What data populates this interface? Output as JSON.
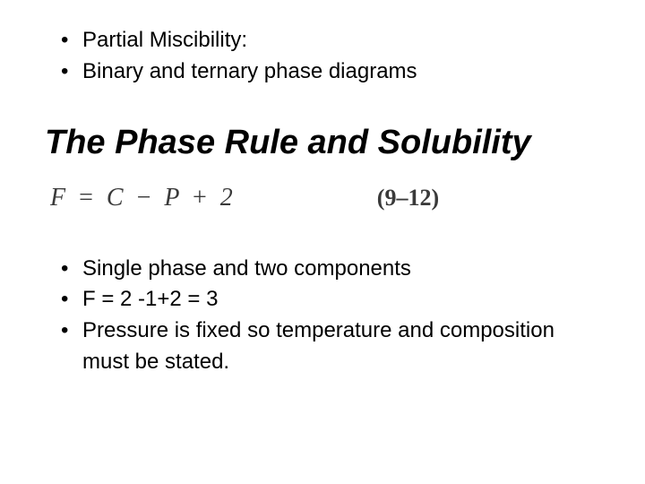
{
  "top_bullets": [
    "Partial Miscibility:",
    "Binary and ternary phase diagrams"
  ],
  "heading": "The Phase Rule and Solubility",
  "equation": {
    "lhs": "F",
    "eq": "=",
    "rhs_parts": [
      "C",
      "−",
      "P",
      "+",
      "2"
    ],
    "number": "(9–12)"
  },
  "bottom_bullets": [
    "Single phase and two components",
    "F = 2 -1+2 = 3",
    "Pressure is fixed so temperature and composition must be stated."
  ],
  "style": {
    "background_color": "#ffffff",
    "text_color": "#000000",
    "equation_color": "#3a3a3a",
    "body_fontsize": 24,
    "heading_fontsize": 38,
    "equation_fontsize": 28,
    "font_family_body": "Arial",
    "font_family_equation": "Times New Roman"
  }
}
